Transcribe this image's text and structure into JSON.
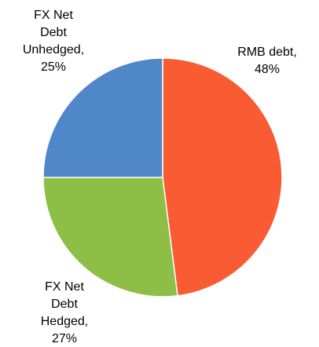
{
  "chart_data": {
    "type": "pie",
    "values": [
      48,
      27,
      25
    ],
    "labels": [
      [
        "RMB debt,",
        "48%"
      ],
      [
        "FX Net",
        "Debt",
        "Hedged,",
        "27%"
      ],
      [
        "FX Net",
        "Debt",
        "Unhedged,",
        "25%"
      ]
    ],
    "colors": [
      "#f95b32",
      "#8dbe45",
      "#4f87c8"
    ]
  }
}
